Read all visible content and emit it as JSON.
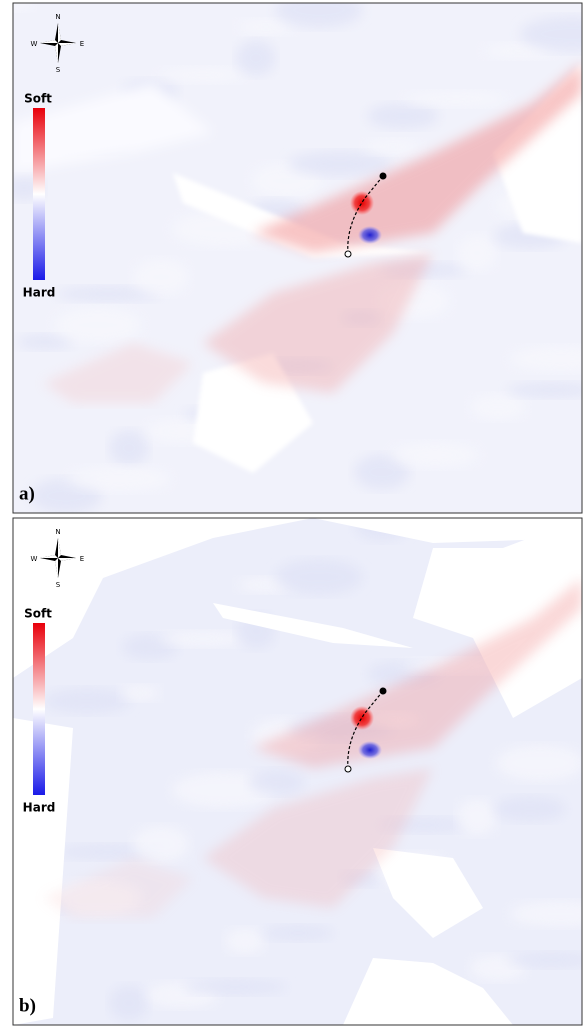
{
  "panels": [
    {
      "label": "a)",
      "compass": {
        "n": "N",
        "e": "E",
        "s": "S",
        "w": "W"
      },
      "legend": {
        "top": "Soft",
        "bottom": "Hard"
      }
    },
    {
      "label": "b)",
      "compass": {
        "n": "N",
        "e": "E",
        "s": "S",
        "w": "W"
      },
      "legend": {
        "top": "Soft",
        "bottom": "Hard"
      }
    }
  ]
}
